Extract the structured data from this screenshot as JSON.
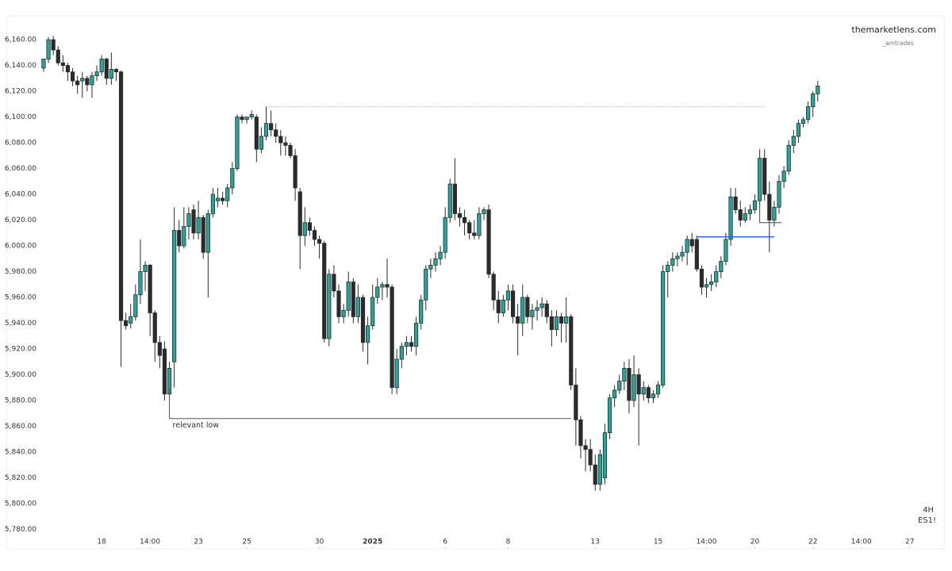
{
  "chart_data": {
    "type": "candlestick",
    "brand": "themarketlens.com",
    "author": "_amtrades",
    "timeframe": "4H",
    "symbol": "ES1!",
    "up_color": "#26a69a",
    "down_color": "#2b2b2b",
    "wick_color": "#2b2b2b",
    "ylim": [
      5764.9,
      6178.5
    ],
    "yticks": [
      {
        "value": 6160,
        "label": "6,160.00"
      },
      {
        "value": 6140,
        "label": "6,140.00"
      },
      {
        "value": 6120,
        "label": "6,120.00"
      },
      {
        "value": 6100,
        "label": "6,100.00"
      },
      {
        "value": 6080,
        "label": "6,080.00"
      },
      {
        "value": 6060,
        "label": "6,060.00"
      },
      {
        "value": 6040,
        "label": "6,040.00"
      },
      {
        "value": 6020,
        "label": "6,020.00"
      },
      {
        "value": 6000,
        "label": "6,000.00"
      },
      {
        "value": 5980,
        "label": "5,980.00"
      },
      {
        "value": 5960,
        "label": "5,960.00"
      },
      {
        "value": 5940,
        "label": "5,940.00"
      },
      {
        "value": 5920,
        "label": "5,920.00"
      },
      {
        "value": 5900,
        "label": "5,900.00"
      },
      {
        "value": 5880,
        "label": "5,880.00"
      },
      {
        "value": 5860,
        "label": "5,860.00"
      },
      {
        "value": 5840,
        "label": "5,840.00"
      },
      {
        "value": 5820,
        "label": "5,820.00"
      },
      {
        "value": 5800,
        "label": "5,800.00"
      },
      {
        "value": 5780,
        "label": "5,780.00"
      }
    ],
    "xlim": [
      -7.7,
      186.1
    ],
    "xticks": [
      {
        "value": 12,
        "label": "18"
      },
      {
        "value": 22,
        "label": "14:00"
      },
      {
        "value": 32,
        "label": "23"
      },
      {
        "value": 42,
        "label": "25"
      },
      {
        "value": 57,
        "label": "30"
      },
      {
        "value": 68,
        "label": "2025"
      },
      {
        "value": 83,
        "label": "6"
      },
      {
        "value": 96,
        "label": "8"
      },
      {
        "value": 114,
        "label": "13"
      },
      {
        "value": 127,
        "label": "15"
      },
      {
        "value": 137,
        "label": "14:00"
      },
      {
        "value": 147,
        "label": "20"
      },
      {
        "value": 159,
        "label": "22"
      },
      {
        "value": 169,
        "label": "14:00"
      },
      {
        "value": 179,
        "label": "27"
      }
    ],
    "open": [
      6138,
      6145,
      6160,
      6152,
      6142,
      6140,
      6135,
      6128,
      6128,
      6130,
      6125,
      6132,
      6135,
      6145,
      6130,
      6137,
      6135,
      5942,
      5940,
      5945,
      5962,
      5980,
      5985,
      5948,
      5925,
      5920,
      5885,
      5910,
      6012,
      6000,
      6015,
      6028,
      6010,
      6022,
      5995,
      6025,
      6035,
      6037,
      6035,
      6045,
      6060,
      6100,
      6098,
      6100,
      6100,
      6075,
      6085,
      6095,
      6090,
      6085,
      6080,
      6078,
      6070,
      6042,
      6008,
      6018,
      6012,
      6005,
      6002,
      5928,
      5978,
      5965,
      5945,
      5950,
      5972,
      5945,
      5960,
      5925,
      5938,
      5960,
      5968,
      5970,
      5968,
      5890,
      5912,
      5922,
      5925,
      5922,
      5940,
      5958,
      5982,
      5985,
      5990,
      5995,
      6022,
      6048,
      6025,
      6022,
      6018,
      6010,
      6008,
      6025,
      6028,
      5978,
      5958,
      5948,
      5958,
      5965,
      5945,
      5940,
      5960,
      5945,
      5950,
      5952,
      5955,
      5945,
      5935,
      5945,
      5940,
      5945,
      5892,
      5865,
      5845,
      5842,
      5830,
      5815,
      5820,
      5855,
      5882,
      5888,
      5895,
      5905,
      5880,
      5900,
      5885,
      5890,
      5882,
      5885,
      5892,
      5980,
      5985,
      5990,
      5992,
      5995,
      6005,
      6005,
      5982,
      5968,
      5970,
      5972,
      5980,
      5988,
      6005,
      6038,
      6028,
      6020,
      6025,
      6028,
      6035,
      6068,
      6040,
      6020,
      6030,
      6050,
      6058,
      6078,
      6085,
      6095,
      6098,
      6108,
      6118
    ],
    "high": [
      6145,
      6162,
      6163,
      6155,
      6148,
      6142,
      6138,
      6132,
      6135,
      6132,
      6135,
      6140,
      6148,
      6146,
      6150,
      6138,
      6136,
      5948,
      5955,
      5970,
      6005,
      5988,
      5986,
      5950,
      5930,
      5926,
      5910,
      6030,
      6020,
      6030,
      6030,
      6032,
      6035,
      6024,
      6028,
      6045,
      6045,
      6042,
      6048,
      6065,
      6102,
      6102,
      6100,
      6105,
      6102,
      6092,
      6108,
      6105,
      6095,
      6090,
      6085,
      6080,
      6075,
      6045,
      6030,
      6022,
      6015,
      6008,
      6004,
      5982,
      5985,
      5970,
      5955,
      5980,
      5975,
      5970,
      5962,
      5945,
      5970,
      5975,
      5972,
      5990,
      5970,
      5920,
      5925,
      5930,
      5930,
      5945,
      5962,
      5985,
      5990,
      5995,
      6000,
      6030,
      6052,
      6068,
      6030,
      6028,
      6020,
      6020,
      6030,
      6030,
      6032,
      5980,
      5965,
      5962,
      5970,
      5970,
      5955,
      5970,
      5962,
      5955,
      5958,
      5960,
      5958,
      5950,
      5950,
      5948,
      5960,
      5947,
      5905,
      5868,
      5850,
      5850,
      5838,
      5842,
      5862,
      5885,
      5892,
      5900,
      5910,
      5912,
      5915,
      5905,
      5895,
      5892,
      5888,
      5895,
      5985,
      5988,
      5995,
      5995,
      6000,
      6008,
      6010,
      6008,
      5985,
      5975,
      5978,
      5985,
      5992,
      6010,
      6045,
      6045,
      6035,
      6030,
      6032,
      6040,
      6075,
      6075,
      6050,
      6035,
      6055,
      6062,
      6082,
      6090,
      6098,
      6100,
      6112,
      6120,
      6128
    ],
    "low": [
      6135,
      6142,
      6148,
      6140,
      6135,
      6128,
      6124,
      6118,
      6115,
      6120,
      6115,
      6128,
      6132,
      6125,
      6125,
      6128,
      5906,
      5935,
      5936,
      5942,
      5955,
      5965,
      5930,
      5910,
      5905,
      5880,
      5882,
      5890,
      5995,
      5998,
      6005,
      6005,
      6005,
      5990,
      5960,
      6022,
      6030,
      6032,
      6030,
      6040,
      6058,
      6095,
      6095,
      6098,
      6065,
      6072,
      6082,
      6085,
      6080,
      6070,
      6070,
      6068,
      6035,
      5982,
      6000,
      6008,
      6000,
      5990,
      5925,
      5922,
      5960,
      5940,
      5940,
      5945,
      5940,
      5940,
      5918,
      5908,
      5935,
      5955,
      5958,
      5960,
      5885,
      5885,
      5905,
      5915,
      5918,
      5915,
      5935,
      5950,
      5975,
      5980,
      5985,
      5990,
      6018,
      6020,
      6015,
      6008,
      6005,
      6005,
      6005,
      6020,
      5975,
      5950,
      5940,
      5945,
      5950,
      5940,
      5915,
      5930,
      5940,
      5935,
      5942,
      5945,
      5940,
      5922,
      5930,
      5925,
      5925,
      5888,
      5845,
      5835,
      5825,
      5825,
      5810,
      5810,
      5815,
      5850,
      5875,
      5885,
      5888,
      5870,
      5875,
      5845,
      5880,
      5878,
      5878,
      5882,
      5890,
      5960,
      5980,
      5984,
      5988,
      5985,
      5995,
      5980,
      5962,
      5960,
      5965,
      5968,
      5975,
      5985,
      6000,
      6025,
      6015,
      6018,
      6020,
      6025,
      6030,
      6035,
      5995,
      6015,
      6025,
      6045,
      6055,
      6072,
      6080,
      6092,
      6095,
      6100,
      6112
    ],
    "close": [
      6145,
      6160,
      6152,
      6142,
      6140,
      6135,
      6128,
      6125,
      6130,
      6125,
      6132,
      6135,
      6145,
      6130,
      6137,
      6135,
      5942,
      5938,
      5945,
      5962,
      5980,
      5985,
      5948,
      5925,
      5915,
      5885,
      5905,
      6012,
      6000,
      6015,
      6025,
      6010,
      6022,
      5995,
      6025,
      6040,
      6037,
      6035,
      6045,
      6060,
      6100,
      6098,
      6100,
      6102,
      6075,
      6085,
      6095,
      6090,
      6085,
      6080,
      6078,
      6070,
      6045,
      6008,
      6018,
      6012,
      6005,
      6002,
      5928,
      5978,
      5965,
      5945,
      5950,
      5972,
      5945,
      5960,
      5925,
      5938,
      5960,
      5968,
      5970,
      5968,
      5890,
      5912,
      5922,
      5925,
      5922,
      5940,
      5958,
      5982,
      5985,
      5990,
      5995,
      6022,
      6048,
      6025,
      6022,
      6018,
      6010,
      6008,
      6025,
      6028,
      5978,
      5958,
      5948,
      5958,
      5965,
      5945,
      5940,
      5960,
      5945,
      5950,
      5952,
      5955,
      5945,
      5935,
      5945,
      5940,
      5945,
      5892,
      5865,
      5845,
      5842,
      5830,
      5815,
      5838,
      5855,
      5882,
      5888,
      5895,
      5905,
      5880,
      5900,
      5885,
      5890,
      5882,
      5885,
      5892,
      5980,
      5985,
      5990,
      5992,
      5995,
      6005,
      6000,
      5982,
      5968,
      5970,
      5972,
      5980,
      5988,
      6005,
      6038,
      6028,
      6020,
      6025,
      6028,
      6035,
      6068,
      6040,
      6020,
      6030,
      6050,
      6058,
      6078,
      6085,
      6095,
      6098,
      6108,
      6118,
      6124
    ],
    "levels": [
      {
        "y": 6108,
        "x": [
          46,
          149
        ],
        "style": "dotted",
        "color": "#9a9a9a"
      },
      {
        "y": 5866,
        "x": [
          26,
          109
        ],
        "stem": 5890,
        "style": "solid",
        "color": "#555555",
        "label": "relevant low"
      },
      {
        "y": 6007,
        "x": [
          135,
          151
        ],
        "style": "solid",
        "color": "#2962ff"
      },
      {
        "y": 6018,
        "x": [
          148,
          152.5
        ],
        "stem": 6033,
        "style": "solid",
        "color": "#444444"
      }
    ]
  }
}
